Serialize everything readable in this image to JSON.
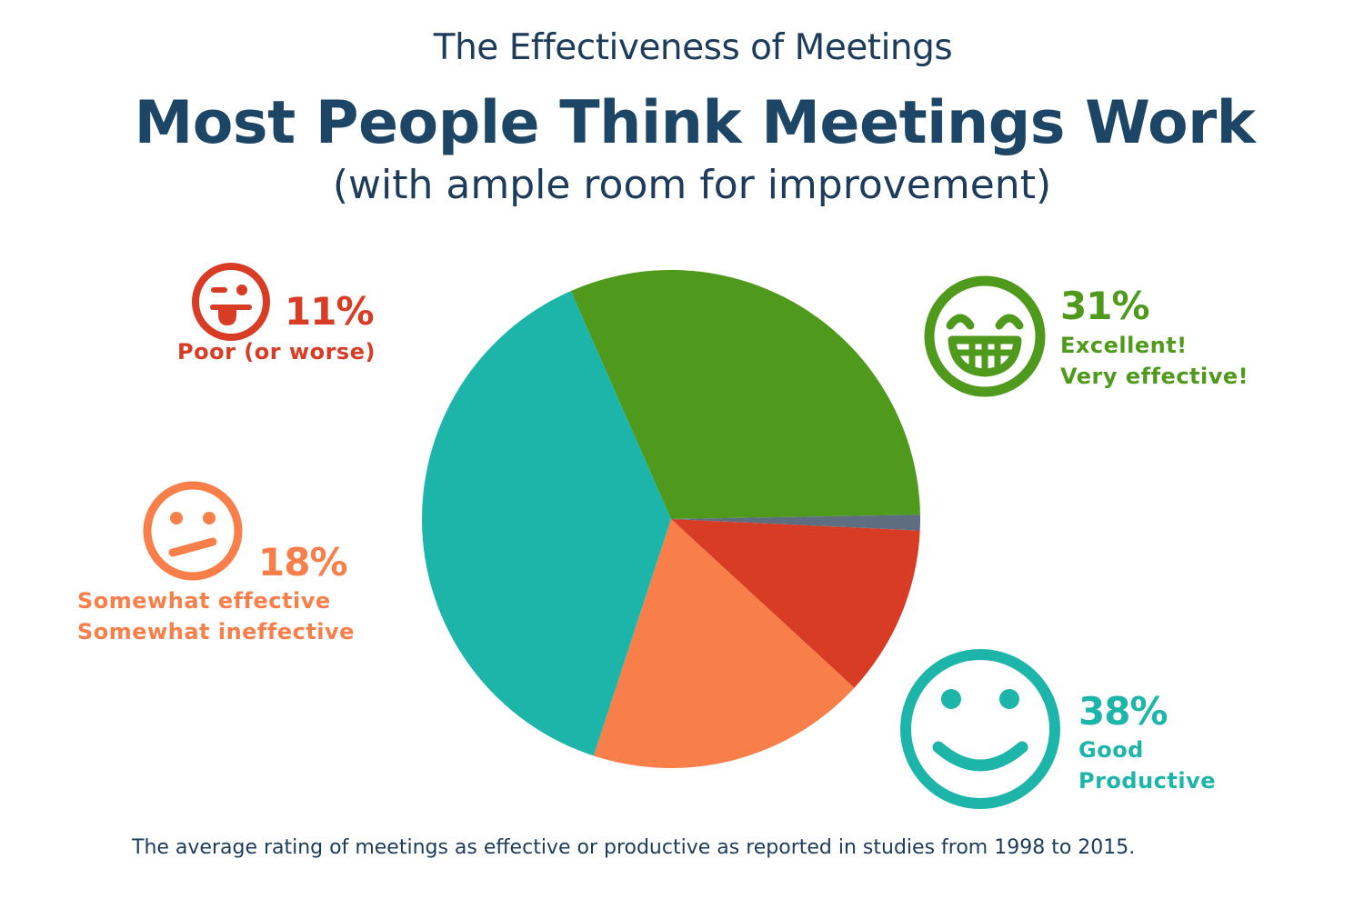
{
  "header": {
    "eyebrow": "The Effectiveness of Meetings",
    "headline": "Most People Think Meetings Work",
    "subhead": "(with ample room for improvement)"
  },
  "footnote": "The average rating of  meetings as effective or productive as reported in studies from 1998 to 2015.",
  "colors": {
    "excellent": "#4f9a1d",
    "good": "#1db5aa",
    "somewhat": "#f87e4a",
    "poor": "#d83c24",
    "other": "#5e6e80"
  },
  "chart_data": {
    "type": "pie",
    "slices": [
      {
        "key": "excellent",
        "value": 31,
        "pct_label": "31%",
        "lines": [
          "Excellent!",
          "Very effective!"
        ],
        "color": "#4f9a1d",
        "icon": "grinning-face-icon"
      },
      {
        "key": "good",
        "value": 38,
        "pct_label": "38%",
        "lines": [
          "Good",
          "Productive"
        ],
        "color": "#1db5aa",
        "icon": "smiling-face-icon"
      },
      {
        "key": "somewhat",
        "value": 18,
        "pct_label": "18%",
        "lines": [
          "Somewhat effective",
          "Somewhat ineffective"
        ],
        "color": "#f87e4a",
        "icon": "neutral-face-icon"
      },
      {
        "key": "poor",
        "value": 11,
        "pct_label": "11%",
        "lines": [
          "Poor (or worse)"
        ],
        "color": "#d83c24",
        "icon": "tongue-out-face-icon"
      },
      {
        "key": "other",
        "value": 1,
        "pct_label": "",
        "lines": [],
        "color": "#5e6e80",
        "icon": ""
      }
    ]
  }
}
